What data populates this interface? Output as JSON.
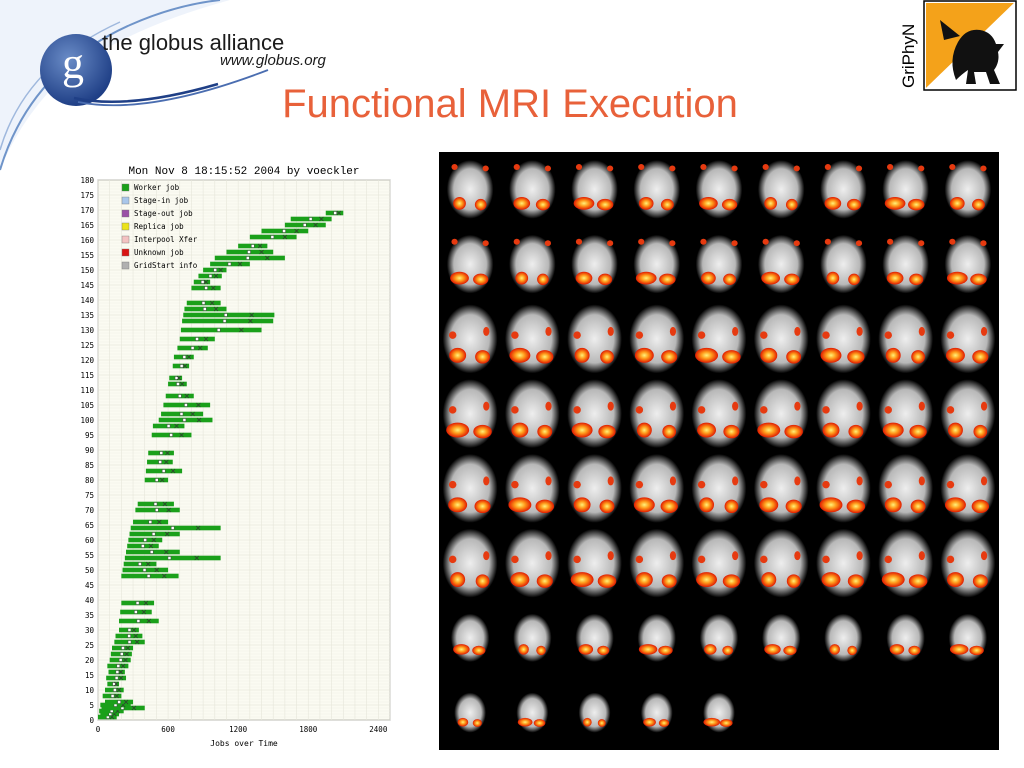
{
  "logo": {
    "letter": "g",
    "name": "the globus alliance",
    "url": "www.globus.org"
  },
  "title": "Functional MRI Execution",
  "griphyn": {
    "label": "GriPhyN"
  },
  "chart_data": {
    "type": "gantt",
    "title": "Mon Nov  8 18:15:52 2004 by voeckler",
    "xlabel": "Jobs over Time",
    "xlim": [
      0,
      2500
    ],
    "ylim": [
      0,
      180
    ],
    "xticks": [
      0,
      600,
      1200,
      1800,
      2400
    ],
    "yticks": [
      0,
      5,
      10,
      15,
      20,
      25,
      30,
      35,
      40,
      45,
      50,
      55,
      60,
      65,
      70,
      75,
      80,
      85,
      90,
      95,
      100,
      105,
      110,
      115,
      120,
      125,
      130,
      135,
      140,
      145,
      150,
      155,
      160,
      165,
      170,
      175,
      180
    ],
    "grid": true,
    "legend_position": "top-left",
    "legend": [
      {
        "label": "Worker job",
        "color": "#1aa01a"
      },
      {
        "label": "Stage-in job",
        "color": "#a9c6ea"
      },
      {
        "label": "Stage-out job",
        "color": "#9a4fa6"
      },
      {
        "label": "Replica job",
        "color": "#ebe31a"
      },
      {
        "label": "Interpool Xfer",
        "color": "#f3c2c2"
      },
      {
        "label": "Unknown job",
        "color": "#d91414"
      },
      {
        "label": "GridStart info",
        "color": "#b0b0b0"
      }
    ],
    "jobs": [
      {
        "y": 1,
        "start": 0,
        "end": 160
      },
      {
        "y": 2,
        "start": 20,
        "end": 180
      },
      {
        "y": 3,
        "start": 10,
        "end": 220
      },
      {
        "y": 4,
        "start": 30,
        "end": 400
      },
      {
        "y": 5,
        "start": 20,
        "end": 280
      },
      {
        "y": 6,
        "start": 60,
        "end": 300
      },
      {
        "y": 8,
        "start": 40,
        "end": 200
      },
      {
        "y": 10,
        "start": 60,
        "end": 220
      },
      {
        "y": 12,
        "start": 80,
        "end": 180
      },
      {
        "y": 14,
        "start": 70,
        "end": 240
      },
      {
        "y": 16,
        "start": 90,
        "end": 230
      },
      {
        "y": 18,
        "start": 80,
        "end": 260
      },
      {
        "y": 20,
        "start": 100,
        "end": 280
      },
      {
        "y": 22,
        "start": 110,
        "end": 290
      },
      {
        "y": 24,
        "start": 120,
        "end": 300
      },
      {
        "y": 26,
        "start": 140,
        "end": 400
      },
      {
        "y": 28,
        "start": 150,
        "end": 380
      },
      {
        "y": 30,
        "start": 180,
        "end": 350
      },
      {
        "y": 33,
        "start": 180,
        "end": 520
      },
      {
        "y": 36,
        "start": 190,
        "end": 460
      },
      {
        "y": 39,
        "start": 200,
        "end": 480
      },
      {
        "y": 48,
        "start": 200,
        "end": 690
      },
      {
        "y": 50,
        "start": 210,
        "end": 600
      },
      {
        "y": 52,
        "start": 220,
        "end": 500
      },
      {
        "y": 54,
        "start": 230,
        "end": 1050
      },
      {
        "y": 56,
        "start": 240,
        "end": 700
      },
      {
        "y": 58,
        "start": 250,
        "end": 520
      },
      {
        "y": 60,
        "start": 260,
        "end": 550
      },
      {
        "y": 62,
        "start": 270,
        "end": 700
      },
      {
        "y": 64,
        "start": 280,
        "end": 1050
      },
      {
        "y": 66,
        "start": 300,
        "end": 600
      },
      {
        "y": 70,
        "start": 320,
        "end": 700
      },
      {
        "y": 72,
        "start": 340,
        "end": 650
      },
      {
        "y": 80,
        "start": 400,
        "end": 600
      },
      {
        "y": 83,
        "start": 410,
        "end": 720
      },
      {
        "y": 86,
        "start": 420,
        "end": 640
      },
      {
        "y": 89,
        "start": 430,
        "end": 650
      },
      {
        "y": 95,
        "start": 460,
        "end": 800
      },
      {
        "y": 98,
        "start": 470,
        "end": 740
      },
      {
        "y": 100,
        "start": 520,
        "end": 980
      },
      {
        "y": 102,
        "start": 540,
        "end": 900
      },
      {
        "y": 105,
        "start": 560,
        "end": 960
      },
      {
        "y": 108,
        "start": 580,
        "end": 820
      },
      {
        "y": 112,
        "start": 600,
        "end": 760
      },
      {
        "y": 114,
        "start": 610,
        "end": 720
      },
      {
        "y": 118,
        "start": 640,
        "end": 780
      },
      {
        "y": 121,
        "start": 650,
        "end": 820
      },
      {
        "y": 124,
        "start": 680,
        "end": 940
      },
      {
        "y": 127,
        "start": 700,
        "end": 1000
      },
      {
        "y": 130,
        "start": 710,
        "end": 1400
      },
      {
        "y": 133,
        "start": 720,
        "end": 1500
      },
      {
        "y": 135,
        "start": 730,
        "end": 1510
      },
      {
        "y": 137,
        "start": 740,
        "end": 1100
      },
      {
        "y": 139,
        "start": 760,
        "end": 1050
      },
      {
        "y": 144,
        "start": 800,
        "end": 1050
      },
      {
        "y": 146,
        "start": 820,
        "end": 960
      },
      {
        "y": 148,
        "start": 860,
        "end": 1060
      },
      {
        "y": 150,
        "start": 900,
        "end": 1100
      },
      {
        "y": 152,
        "start": 960,
        "end": 1300
      },
      {
        "y": 154,
        "start": 1000,
        "end": 1600
      },
      {
        "y": 156,
        "start": 1100,
        "end": 1500
      },
      {
        "y": 158,
        "start": 1200,
        "end": 1450
      },
      {
        "y": 161,
        "start": 1300,
        "end": 1700
      },
      {
        "y": 163,
        "start": 1400,
        "end": 1800
      },
      {
        "y": 165,
        "start": 1600,
        "end": 1950
      },
      {
        "y": 167,
        "start": 1650,
        "end": 2000
      },
      {
        "y": 169,
        "start": 1950,
        "end": 2100
      }
    ]
  }
}
